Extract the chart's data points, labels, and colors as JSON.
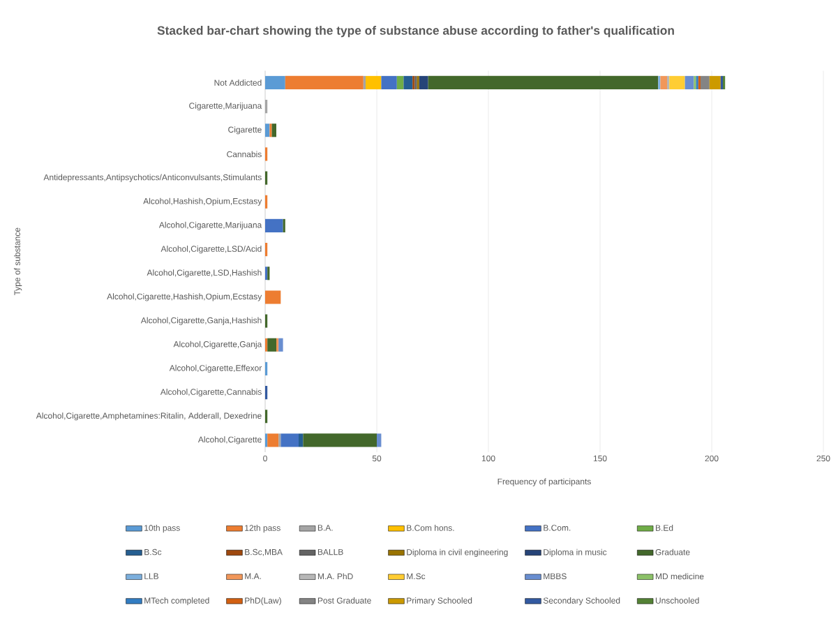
{
  "chart_data": {
    "type": "bar",
    "orientation": "horizontal",
    "stacked": true,
    "title": "Stacked bar-chart showing the type of substance abuse according to father's qualification",
    "xlabel": "Frequency of participants",
    "ylabel": "Type of substance",
    "categories": [
      "Not Addicted",
      "Cigarette,Marijuana",
      "Cigarette",
      "Cannabis",
      "Antidepressants,Antipsychotics/Anticonvulsants,Stimulants",
      "Alcohol,Hashish,Opium,Ecstasy",
      "Alcohol,Cigarette,Marijuana",
      "Alcohol,Cigarette,LSD/Acid",
      "Alcohol,Cigarette,LSD,Hashish",
      "Alcohol,Cigarette,Hashish,Opium,Ecstasy",
      "Alcohol,Cigarette,Ganja,Hashish",
      "Alcohol,Cigarette,Ganja",
      "Alcohol,Cigarette,Effexor",
      "Alcohol,Cigarette,Cannabis",
      "Alcohol,Cigarette,Amphetamines:Ritalin, Adderall, Dexedrine",
      "Alcohol,Cigarette"
    ],
    "xlim": [
      0,
      250
    ],
    "xticks": [
      0,
      50,
      100,
      150,
      200,
      250
    ],
    "grid": "x",
    "legend": "bottom",
    "series": [
      {
        "name": "10th pass",
        "color": "#5b9bd5",
        "values": [
          9,
          null,
          2,
          null,
          null,
          null,
          null,
          null,
          null,
          null,
          null,
          null,
          1,
          null,
          null,
          1
        ]
      },
      {
        "name": "12th pass",
        "color": "#ed7d31",
        "values": [
          35,
          null,
          1,
          1,
          null,
          1,
          null,
          1,
          null,
          7,
          null,
          1,
          null,
          null,
          null,
          5
        ]
      },
      {
        "name": "B.A.",
        "color": "#a5a5a5",
        "values": [
          1,
          1,
          null,
          null,
          null,
          null,
          null,
          null,
          null,
          null,
          null,
          null,
          null,
          null,
          null,
          1
        ]
      },
      {
        "name": "B.Com hons.",
        "color": "#ffc000",
        "values": [
          7,
          null,
          null,
          null,
          null,
          null,
          null,
          null,
          null,
          null,
          null,
          null,
          null,
          null,
          null,
          null
        ]
      },
      {
        "name": "B.Com.",
        "color": "#4472c4",
        "values": [
          7,
          null,
          null,
          null,
          null,
          null,
          8,
          null,
          1,
          null,
          null,
          null,
          null,
          null,
          null,
          8
        ]
      },
      {
        "name": "B.Ed",
        "color": "#70ad47",
        "values": [
          3,
          null,
          null,
          null,
          null,
          null,
          null,
          null,
          null,
          null,
          null,
          null,
          null,
          null,
          null,
          null
        ]
      },
      {
        "name": "B.Sc",
        "color": "#255e91",
        "values": [
          4,
          null,
          null,
          null,
          null,
          null,
          null,
          null,
          null,
          null,
          null,
          null,
          null,
          null,
          null,
          2
        ]
      },
      {
        "name": "B.Sc,MBA",
        "color": "#9e480e",
        "values": [
          1,
          null,
          null,
          null,
          null,
          null,
          null,
          null,
          null,
          null,
          null,
          null,
          null,
          null,
          null,
          null
        ]
      },
      {
        "name": "BALLB",
        "color": "#636363",
        "values": [
          1,
          null,
          null,
          null,
          null,
          null,
          null,
          null,
          null,
          null,
          null,
          null,
          null,
          null,
          null,
          null
        ]
      },
      {
        "name": "Diploma in civil engineering",
        "color": "#997300",
        "values": [
          1,
          null,
          null,
          null,
          null,
          null,
          null,
          null,
          null,
          null,
          null,
          null,
          null,
          null,
          null,
          null
        ]
      },
      {
        "name": "Diploma in music",
        "color": "#264478",
        "values": [
          4,
          null,
          null,
          null,
          null,
          null,
          null,
          null,
          null,
          null,
          null,
          null,
          null,
          null,
          null,
          null
        ]
      },
      {
        "name": "Graduate",
        "color": "#43682b",
        "values": [
          103,
          null,
          2,
          null,
          1,
          null,
          1,
          null,
          1,
          null,
          1,
          4,
          null,
          null,
          1,
          33
        ]
      },
      {
        "name": "LLB",
        "color": "#7cafdd",
        "values": [
          1,
          null,
          null,
          null,
          null,
          null,
          null,
          null,
          null,
          null,
          null,
          null,
          null,
          null,
          null,
          null
        ]
      },
      {
        "name": "M.A.",
        "color": "#f1975a",
        "values": [
          3,
          null,
          null,
          null,
          null,
          null,
          null,
          null,
          null,
          null,
          null,
          1,
          null,
          null,
          null,
          null
        ]
      },
      {
        "name": "M.A. PhD",
        "color": "#b7b7b7",
        "values": [
          1,
          null,
          null,
          null,
          null,
          null,
          null,
          null,
          null,
          null,
          null,
          null,
          null,
          null,
          null,
          null
        ]
      },
      {
        "name": "M.Sc",
        "color": "#ffcd33",
        "values": [
          7,
          null,
          null,
          null,
          null,
          null,
          null,
          null,
          null,
          null,
          null,
          null,
          null,
          null,
          null,
          null
        ]
      },
      {
        "name": "MBBS",
        "color": "#698ed0",
        "values": [
          4,
          null,
          null,
          null,
          null,
          null,
          null,
          null,
          null,
          null,
          null,
          2,
          null,
          null,
          null,
          2
        ]
      },
      {
        "name": "MD medicine",
        "color": "#8cc168",
        "values": [
          1,
          null,
          null,
          null,
          null,
          null,
          null,
          null,
          null,
          null,
          null,
          null,
          null,
          null,
          null,
          null
        ]
      },
      {
        "name": "MTech completed",
        "color": "#327dc2",
        "values": [
          1,
          null,
          null,
          null,
          null,
          null,
          null,
          null,
          null,
          null,
          null,
          null,
          null,
          null,
          null,
          null
        ]
      },
      {
        "name": "PhD(Law)",
        "color": "#d26012",
        "values": [
          1,
          null,
          null,
          null,
          null,
          null,
          null,
          null,
          null,
          null,
          null,
          null,
          null,
          null,
          null,
          null
        ]
      },
      {
        "name": "Post Graduate",
        "color": "#848484",
        "values": [
          4,
          null,
          null,
          null,
          null,
          null,
          null,
          null,
          null,
          null,
          null,
          null,
          null,
          null,
          null,
          null
        ]
      },
      {
        "name": "Primary Schooled",
        "color": "#cc9a00",
        "values": [
          5,
          null,
          null,
          null,
          null,
          null,
          null,
          null,
          null,
          null,
          null,
          null,
          null,
          null,
          null,
          null
        ]
      },
      {
        "name": "Secondary Schooled",
        "color": "#335aa1",
        "values": [
          1,
          null,
          null,
          null,
          null,
          null,
          null,
          null,
          null,
          null,
          null,
          null,
          null,
          1,
          null,
          null
        ]
      },
      {
        "name": "Unschooled",
        "color": "#548235",
        "values": [
          1,
          null,
          null,
          null,
          null,
          null,
          null,
          null,
          null,
          null,
          null,
          null,
          null,
          null,
          null,
          null
        ]
      }
    ]
  }
}
